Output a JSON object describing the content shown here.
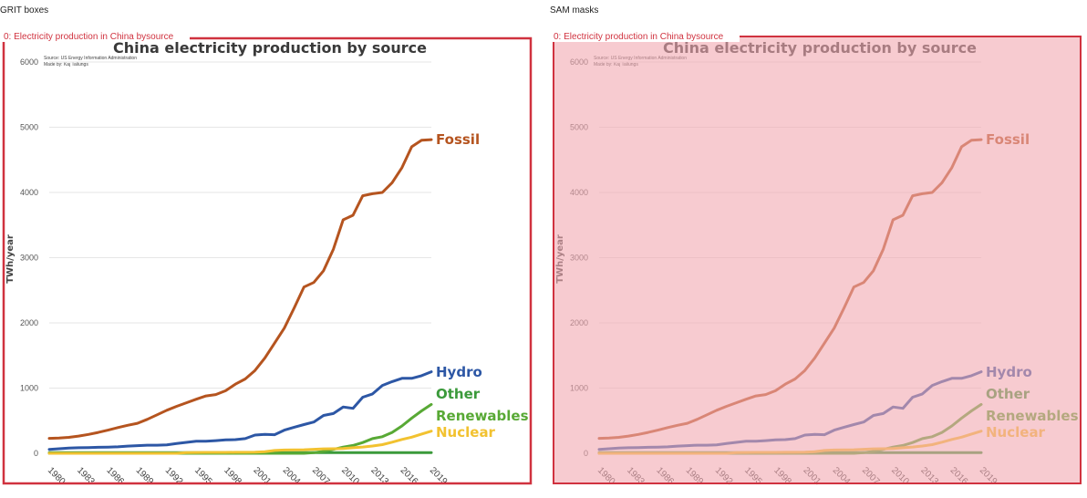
{
  "panels": [
    {
      "title": "GRIT boxes",
      "kind": "box",
      "annotation": {
        "label": "0: Electricity production in China bysource",
        "color": "#d0323f"
      }
    },
    {
      "title": "SAM masks",
      "kind": "mask",
      "annotation": {
        "label": "0: Electricity production in China bysource",
        "color": "#d0323f",
        "fill": "#f2a9b0"
      }
    }
  ],
  "chart_data": {
    "type": "line",
    "title": "China electricity production by source",
    "source_note": "Source: US Energy Information Administration",
    "author_note": "Made by: Kaj Tallungs",
    "ylabel": "TWh/year",
    "xlabel": "",
    "ylim": [
      0,
      6000
    ],
    "yticks": [
      0,
      1000,
      2000,
      3000,
      4000,
      5000,
      6000
    ],
    "xlim": [
      1980,
      2019
    ],
    "xticks": [
      1980,
      1983,
      1986,
      1989,
      1992,
      1995,
      1998,
      2001,
      2004,
      2007,
      2010,
      2013,
      2016,
      2019
    ],
    "grid": true,
    "x": [
      1980,
      1981,
      1982,
      1983,
      1984,
      1985,
      1986,
      1987,
      1988,
      1989,
      1990,
      1991,
      1992,
      1993,
      1994,
      1995,
      1996,
      1997,
      1998,
      1999,
      2000,
      2001,
      2002,
      2003,
      2004,
      2005,
      2006,
      2007,
      2008,
      2009,
      2010,
      2011,
      2012,
      2013,
      2014,
      2015,
      2016,
      2017,
      2018,
      2019
    ],
    "series": [
      {
        "name": "Fossil",
        "color": "#b5541f",
        "values": [
          230,
          235,
          245,
          265,
          290,
          320,
          355,
          395,
          430,
          460,
          520,
          590,
          660,
          720,
          775,
          830,
          880,
          900,
          960,
          1060,
          1140,
          1270,
          1460,
          1690,
          1920,
          2230,
          2550,
          2620,
          2800,
          3130,
          3580,
          3650,
          3950,
          3980,
          4000,
          4150,
          4380,
          4700,
          4800,
          4810
        ]
      },
      {
        "name": "Hydro",
        "color": "#2d57a5",
        "values": [
          60,
          70,
          80,
          85,
          88,
          92,
          95,
          100,
          110,
          118,
          125,
          125,
          130,
          150,
          168,
          185,
          185,
          195,
          205,
          210,
          225,
          280,
          290,
          285,
          355,
          400,
          440,
          480,
          580,
          610,
          710,
          690,
          860,
          910,
          1040,
          1100,
          1150,
          1150,
          1190,
          1250
        ]
      },
      {
        "name": "Other",
        "color": "#3b9a3b",
        "values": [
          10,
          10,
          10,
          10,
          10,
          10,
          10,
          10,
          10,
          10,
          10,
          10,
          10,
          10,
          10,
          10,
          10,
          10,
          10,
          10,
          10,
          10,
          10,
          10,
          10,
          10,
          10,
          10,
          10,
          10,
          10,
          10,
          10,
          10,
          10,
          10,
          10,
          10,
          10,
          10
        ]
      },
      {
        "name": "Renewables",
        "color": "#58a935",
        "values": [
          0,
          0,
          0,
          0,
          0,
          0,
          0,
          0,
          0,
          0,
          0,
          0,
          0,
          0,
          0,
          0,
          0,
          0,
          0,
          0,
          0,
          0,
          0,
          0,
          0,
          0,
          0,
          10,
          30,
          60,
          95,
          120,
          165,
          225,
          255,
          320,
          420,
          540,
          650,
          750
        ]
      },
      {
        "name": "Nuclear",
        "color": "#f2c230",
        "values": [
          0,
          0,
          0,
          0,
          0,
          0,
          0,
          0,
          0,
          0,
          0,
          0,
          0,
          0,
          10,
          13,
          14,
          14,
          14,
          15,
          16,
          17,
          25,
          43,
          50,
          53,
          55,
          62,
          68,
          70,
          74,
          86,
          97,
          112,
          133,
          171,
          213,
          248,
          295,
          340
        ]
      }
    ]
  }
}
